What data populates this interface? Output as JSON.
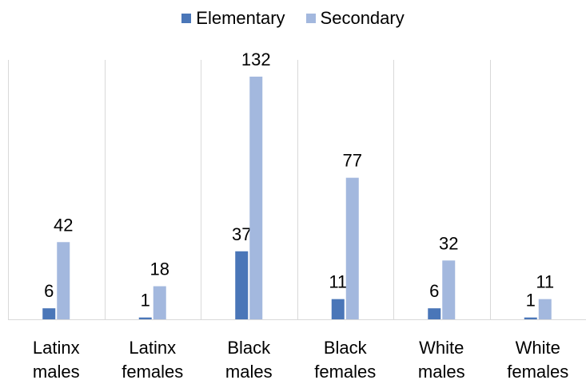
{
  "chart_data": {
    "type": "bar",
    "categories": [
      [
        "Latinx",
        "males"
      ],
      [
        "Latinx",
        "females"
      ],
      [
        "Black",
        "males"
      ],
      [
        "Black",
        "females"
      ],
      [
        "White",
        "males"
      ],
      [
        "White",
        "females"
      ]
    ],
    "series": [
      {
        "name": "Elementary",
        "color": "#4a76b8",
        "values": [
          6,
          1,
          37,
          11,
          6,
          1
        ]
      },
      {
        "name": "Secondary",
        "color": "#a3b8de",
        "values": [
          42,
          18,
          132,
          77,
          32,
          11
        ]
      }
    ],
    "ylim": [
      0,
      132
    ],
    "grid": "vertical-separators",
    "legend_position": "top"
  }
}
